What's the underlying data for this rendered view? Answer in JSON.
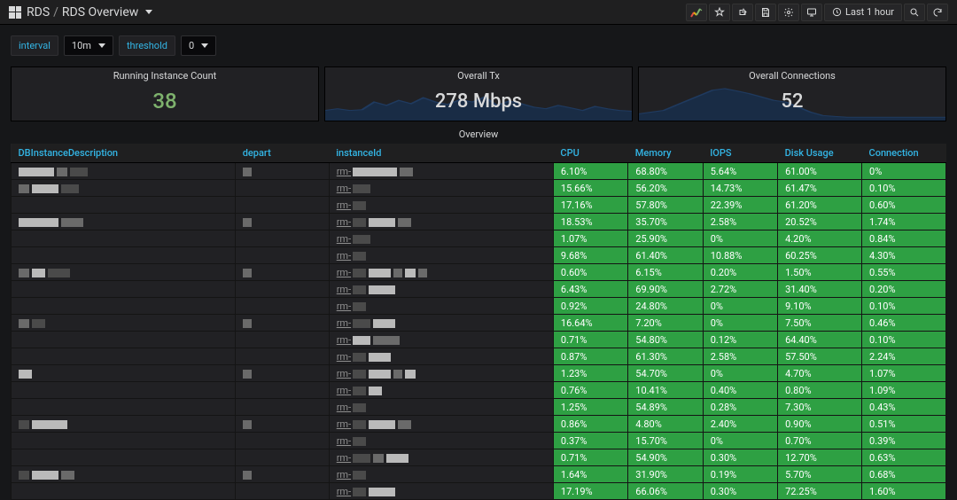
{
  "header": {
    "product": "RDS",
    "title": "RDS Overview",
    "time_range": "Last 1 hour"
  },
  "controls": {
    "interval_label": "interval",
    "interval_value": "10m",
    "threshold_label": "threshold",
    "threshold_value": "0"
  },
  "panels": {
    "instance_count": {
      "title": "Running Instance Count",
      "value": "38",
      "color": "#7eb26d"
    },
    "overall_tx": {
      "title": "Overall Tx",
      "value": "278 Mbps",
      "spark_color": "#1f3a5f",
      "spark_fill": "#18304e",
      "spark_points": [
        0.3,
        0.35,
        0.3,
        0.32,
        0.55,
        0.45,
        0.6,
        0.5,
        0.68,
        0.55,
        0.48,
        0.62,
        0.55,
        0.7,
        0.45,
        0.58,
        0.5,
        0.4,
        0.35,
        0.45,
        0.38,
        0.3,
        0.42,
        0.35,
        0.3,
        0.28
      ]
    },
    "overall_conn": {
      "title": "Overall Connections",
      "value": "52",
      "spark_color": "#1f3a5f",
      "spark_fill": "#18304e",
      "spark_points": [
        0.2,
        0.25,
        0.3,
        0.45,
        0.6,
        0.75,
        0.9,
        0.95,
        0.88,
        0.8,
        0.7,
        0.6,
        0.55,
        0.4,
        0.25,
        0.15,
        0.12,
        0.1,
        0.1,
        0.1,
        0.1,
        0.1,
        0.1,
        0.1,
        0.1,
        0.1
      ]
    }
  },
  "table": {
    "section_title": "Overview",
    "columns": [
      "DBInstanceDescription",
      "depart",
      "instanceId",
      "CPU",
      "Memory",
      "IOPS",
      "Disk Usage",
      "Connection"
    ],
    "col_widths": [
      "24%",
      "10%",
      "24%",
      "8%",
      "8%",
      "8%",
      "9%",
      "9%"
    ],
    "metric_start_index": 3,
    "rows": [
      {
        "cpu": "6.10%",
        "mem": "68.80%",
        "iops": "5.64%",
        "disk": "61.00%",
        "conn": "0%"
      },
      {
        "cpu": "15.66%",
        "mem": "56.20%",
        "iops": "14.73%",
        "disk": "61.47%",
        "conn": "0.10%"
      },
      {
        "cpu": "17.16%",
        "mem": "57.80%",
        "iops": "22.39%",
        "disk": "61.20%",
        "conn": "0.60%"
      },
      {
        "cpu": "18.53%",
        "mem": "35.70%",
        "iops": "2.58%",
        "disk": "20.52%",
        "conn": "1.74%"
      },
      {
        "cpu": "1.07%",
        "mem": "25.90%",
        "iops": "0%",
        "disk": "4.20%",
        "conn": "0.84%"
      },
      {
        "cpu": "9.68%",
        "mem": "61.40%",
        "iops": "10.88%",
        "disk": "60.25%",
        "conn": "4.30%"
      },
      {
        "cpu": "0.60%",
        "mem": "6.15%",
        "iops": "0.20%",
        "disk": "1.50%",
        "conn": "0.55%"
      },
      {
        "cpu": "6.43%",
        "mem": "69.90%",
        "iops": "2.72%",
        "disk": "31.40%",
        "conn": "0.20%"
      },
      {
        "cpu": "0.92%",
        "mem": "24.80%",
        "iops": "0%",
        "disk": "9.10%",
        "conn": "0.10%"
      },
      {
        "cpu": "16.64%",
        "mem": "7.20%",
        "iops": "0%",
        "disk": "7.50%",
        "conn": "0.46%"
      },
      {
        "cpu": "0.71%",
        "mem": "54.80%",
        "iops": "0.12%",
        "disk": "64.40%",
        "conn": "0.10%"
      },
      {
        "cpu": "0.87%",
        "mem": "61.30%",
        "iops": "2.58%",
        "disk": "57.50%",
        "conn": "2.24%"
      },
      {
        "cpu": "1.23%",
        "mem": "54.70%",
        "iops": "0%",
        "disk": "4.70%",
        "conn": "1.07%"
      },
      {
        "cpu": "0.76%",
        "mem": "10.41%",
        "iops": "0.40%",
        "disk": "0.80%",
        "conn": "1.09%"
      },
      {
        "cpu": "1.25%",
        "mem": "54.89%",
        "iops": "0.28%",
        "disk": "7.30%",
        "conn": "0.43%"
      },
      {
        "cpu": "0.86%",
        "mem": "4.80%",
        "iops": "2.40%",
        "disk": "0.90%",
        "conn": "0.51%"
      },
      {
        "cpu": "0.37%",
        "mem": "15.70%",
        "iops": "0%",
        "disk": "0.70%",
        "conn": "0.39%"
      },
      {
        "cpu": "0.71%",
        "mem": "54.90%",
        "iops": "0.30%",
        "disk": "12.70%",
        "conn": "0.63%"
      },
      {
        "cpu": "1.64%",
        "mem": "31.90%",
        "iops": "0.19%",
        "disk": "5.70%",
        "conn": "0.68%"
      },
      {
        "cpu": "17.19%",
        "mem": "66.06%",
        "iops": "0.30%",
        "disk": "72.25%",
        "conn": "1.60%"
      }
    ],
    "redact_patterns": {
      "desc": [
        [
          [
            "light",
            40
          ],
          [
            "mid",
            12
          ],
          [
            "dark",
            20
          ]
        ],
        [
          [
            "mid",
            12
          ],
          [
            "light",
            30
          ],
          [
            "dark",
            20
          ]
        ],
        [],
        [
          [
            "light",
            45
          ],
          [
            "mid",
            25
          ]
        ],
        [],
        [],
        [
          [
            "mid",
            12
          ],
          [
            "light",
            15
          ],
          [
            "dark",
            25
          ]
        ],
        [],
        [],
        [
          [
            "mid",
            12
          ],
          [
            "dark",
            15
          ]
        ],
        [],
        [],
        [
          [
            "light",
            15
          ]
        ],
        [],
        [],
        [
          [
            "dark",
            12
          ],
          [
            "light",
            40
          ]
        ],
        [],
        [],
        [
          [
            "dark",
            12
          ],
          [
            "light",
            30
          ],
          [
            "mid",
            15
          ]
        ],
        []
      ],
      "depart": [
        [
          [
            "mid",
            10
          ]
        ],
        [],
        [],
        [
          [
            "mid",
            10
          ]
        ],
        [],
        [],
        [
          [
            "mid",
            10
          ]
        ],
        [],
        [],
        [
          [
            "mid",
            10
          ]
        ],
        [],
        [],
        [
          [
            "mid",
            10
          ]
        ],
        [],
        [],
        [
          [
            "mid",
            10
          ]
        ],
        [],
        [],
        [
          [
            "mid",
            10
          ]
        ],
        []
      ],
      "inst": [
        [
          [
            "light",
            50
          ],
          [
            "mid",
            15
          ]
        ],
        [
          [
            "dark",
            20
          ]
        ],
        [
          [
            "dark",
            15
          ]
        ],
        [
          [
            "dark",
            15
          ],
          [
            "light",
            30
          ],
          [
            "mid",
            15
          ]
        ],
        [
          [
            "dark",
            20
          ]
        ],
        [
          [
            "dark",
            15
          ]
        ],
        [
          [
            "dark",
            15
          ],
          [
            "light",
            25
          ],
          [
            "mid",
            10
          ],
          [
            "light",
            12
          ],
          [
            "mid",
            10
          ]
        ],
        [
          [
            "dark",
            15
          ],
          [
            "light",
            30
          ]
        ],
        [
          [
            "dark",
            15
          ]
        ],
        [
          [
            "dark",
            20
          ],
          [
            "light",
            25
          ]
        ],
        [
          [
            "light",
            20
          ],
          [
            "mid",
            30
          ]
        ],
        [
          [
            "dark",
            15
          ],
          [
            "light",
            25
          ]
        ],
        [
          [
            "dark",
            15
          ],
          [
            "light",
            25
          ],
          [
            "mid",
            10
          ],
          [
            "light",
            12
          ]
        ],
        [
          [
            "dark",
            15
          ],
          [
            "light",
            15
          ]
        ],
        [
          [
            "dark",
            15
          ]
        ],
        [
          [
            "dark",
            15
          ],
          [
            "light",
            30
          ],
          [
            "mid",
            15
          ]
        ],
        [
          [
            "dark",
            15
          ]
        ],
        [
          [
            "dark",
            20
          ],
          [
            "mid",
            12
          ],
          [
            "light",
            25
          ]
        ],
        [
          [
            "dark",
            15
          ]
        ],
        [
          [
            "dark",
            15
          ],
          [
            "light",
            30
          ]
        ]
      ]
    }
  },
  "colors": {
    "metric_bg": "#2ea043",
    "link": "#33b5e5"
  }
}
